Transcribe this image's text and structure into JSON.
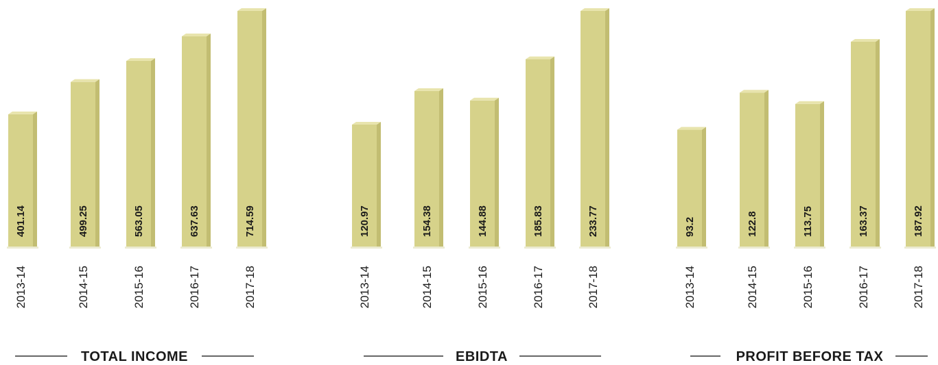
{
  "colors": {
    "bar_front": "#d6d28a",
    "bar_side": "#c2bd72",
    "bar_top": "#e8e4ad",
    "text": "#1a1a1a"
  },
  "chart_data": [
    {
      "type": "bar",
      "title": "TOTAL INCOME",
      "categories": [
        "2013-14",
        "2014-15",
        "2015-16",
        "2016-17",
        "2017-18"
      ],
      "values": [
        401.14,
        499.25,
        563.05,
        637.63,
        714.59
      ],
      "value_labels": [
        "401.14",
        "499.25",
        "563.05",
        "637.63",
        "714.59"
      ],
      "ylim": [
        0,
        714.59
      ],
      "grid": false,
      "legend": "none"
    },
    {
      "type": "bar",
      "title": "EBIDTA",
      "categories": [
        "2013-14",
        "2014-15",
        "2015-16",
        "2016-17",
        "2017-18"
      ],
      "values": [
        120.97,
        154.38,
        144.88,
        185.83,
        233.77
      ],
      "value_labels": [
        "120.97",
        "154.38",
        "144.88",
        "185.83",
        "233.77"
      ],
      "ylim": [
        0,
        233.77
      ],
      "grid": false,
      "legend": "none"
    },
    {
      "type": "bar",
      "title": "PROFIT BEFORE TAX",
      "categories": [
        "2013-14",
        "2014-15",
        "2015-16",
        "2016-17",
        "2017-18"
      ],
      "values": [
        93.2,
        122.8,
        113.75,
        163.37,
        187.92
      ],
      "value_labels": [
        "93.2",
        "122.8",
        "113.75",
        "163.37",
        "187.92"
      ],
      "ylim": [
        0,
        187.92
      ],
      "grid": false,
      "legend": "none"
    }
  ]
}
